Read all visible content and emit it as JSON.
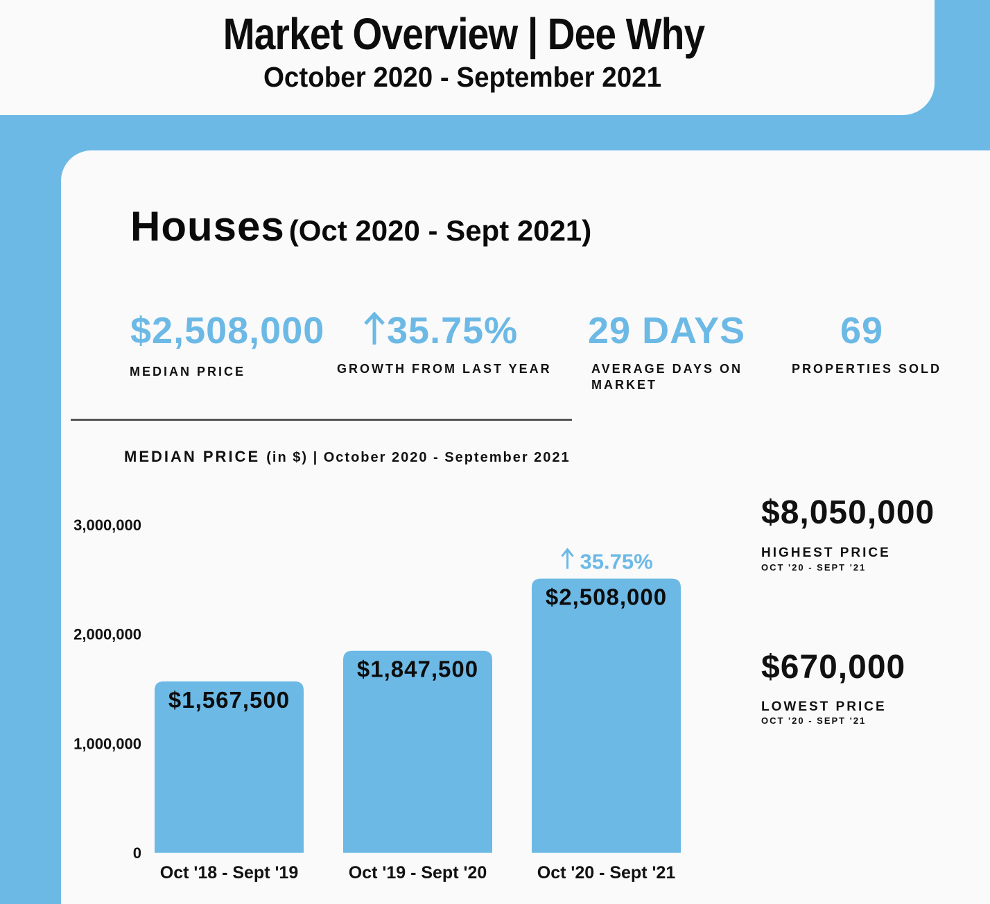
{
  "header": {
    "title": "Market Overview | Dee Why",
    "subtitle": "October 2020 - September 2021"
  },
  "section": {
    "title": "Houses",
    "period": "(Oct 2020 - Sept 2021)"
  },
  "stats": [
    {
      "value": "$2,508,000",
      "label": "MEDIAN PRICE"
    },
    {
      "value": "35.75%",
      "arrow": "arrow-up-icon",
      "label": "GROWTH FROM LAST YEAR"
    },
    {
      "value": "29 DAYS",
      "label": "AVERAGE DAYS ON MARKET"
    },
    {
      "value": "69",
      "label": "PROPERTIES SOLD"
    }
  ],
  "chart_heading": {
    "main": "MEDIAN PRICE",
    "rest": "(in $) | October 2020 - September 2021"
  },
  "side": {
    "highest_value": "$8,050,000",
    "highest_label": "HIGHEST PRICE",
    "highest_sub": "OCT '20 - SEPT '21",
    "lowest_value": "$670,000",
    "lowest_label": "LOWEST PRICE",
    "lowest_sub": "OCT '20 - SEPT '21"
  },
  "colors": {
    "accent": "#6cb9e6",
    "background": "#fafafa",
    "text": "#0d0d0d"
  },
  "chart_data": {
    "type": "bar",
    "title": "MEDIAN PRICE (in $) | October 2020 - September 2021",
    "categories": [
      "Oct '18 - Sept '19",
      "Oct '19 - Sept '20",
      "Oct '20 - Sept '21"
    ],
    "values": [
      1567500,
      1847500,
      2508000
    ],
    "value_labels": [
      "$1,567,500",
      "$1,847,500",
      "$2,508,000"
    ],
    "yticks": [
      0,
      1000000,
      2000000,
      3000000
    ],
    "ytick_labels": [
      "0",
      "1,000,000",
      "2,000,000",
      "3,000,000"
    ],
    "ylim": [
      0,
      3000000
    ],
    "annotation": {
      "category_index": 2,
      "text": "35.75%",
      "arrow": "arrow-up-icon"
    },
    "grid": false,
    "xlabel": "",
    "ylabel": ""
  }
}
